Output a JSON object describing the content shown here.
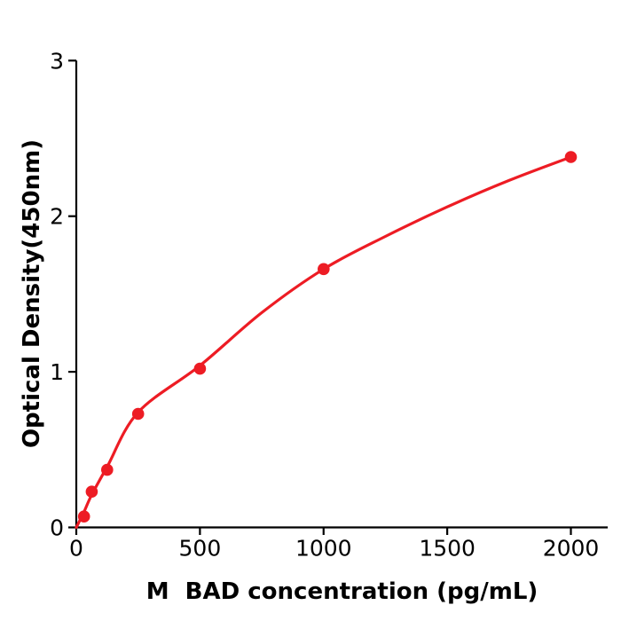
{
  "chart_data": {
    "type": "scatter",
    "title": "",
    "xlabel": "M  BAD concentration (pg/mL)",
    "ylabel": "Optical Density(450nm)",
    "series": [
      {
        "name": "standard-points",
        "marker": "circle",
        "color": "#ED1C24",
        "points": [
          {
            "x": 31.25,
            "y": 0.07
          },
          {
            "x": 62.5,
            "y": 0.23
          },
          {
            "x": 125,
            "y": 0.37
          },
          {
            "x": 250,
            "y": 0.73
          },
          {
            "x": 500,
            "y": 1.02
          },
          {
            "x": 1000,
            "y": 1.66
          },
          {
            "x": 2000,
            "y": 2.38
          }
        ]
      }
    ],
    "fit_curve": {
      "name": "standard-curve-fit",
      "color": "#ED1C24",
      "points": [
        [
          0,
          0.0
        ],
        [
          31.25,
          0.1
        ],
        [
          62.5,
          0.21
        ],
        [
          125,
          0.39
        ],
        [
          250,
          0.74
        ],
        [
          500,
          1.04
        ],
        [
          750,
          1.38
        ],
        [
          1000,
          1.66
        ],
        [
          1250,
          1.87
        ],
        [
          1500,
          2.06
        ],
        [
          1750,
          2.23
        ],
        [
          2000,
          2.38
        ]
      ]
    },
    "x_ticks": [
      {
        "value": 0,
        "label": "0"
      },
      {
        "value": 500,
        "label": "500"
      },
      {
        "value": 1000,
        "label": "1000"
      },
      {
        "value": 1500,
        "label": "1500"
      },
      {
        "value": 2000,
        "label": "2000"
      }
    ],
    "y_ticks": [
      {
        "value": 0,
        "label": "0"
      },
      {
        "value": 1,
        "label": "1"
      },
      {
        "value": 2,
        "label": "2"
      },
      {
        "value": 3,
        "label": "3"
      }
    ],
    "xlim": [
      0,
      2150
    ],
    "ylim": [
      0,
      3
    ],
    "grid": false,
    "legend_position": "none",
    "axis_color": "#000000",
    "background_color": "#ffffff"
  }
}
